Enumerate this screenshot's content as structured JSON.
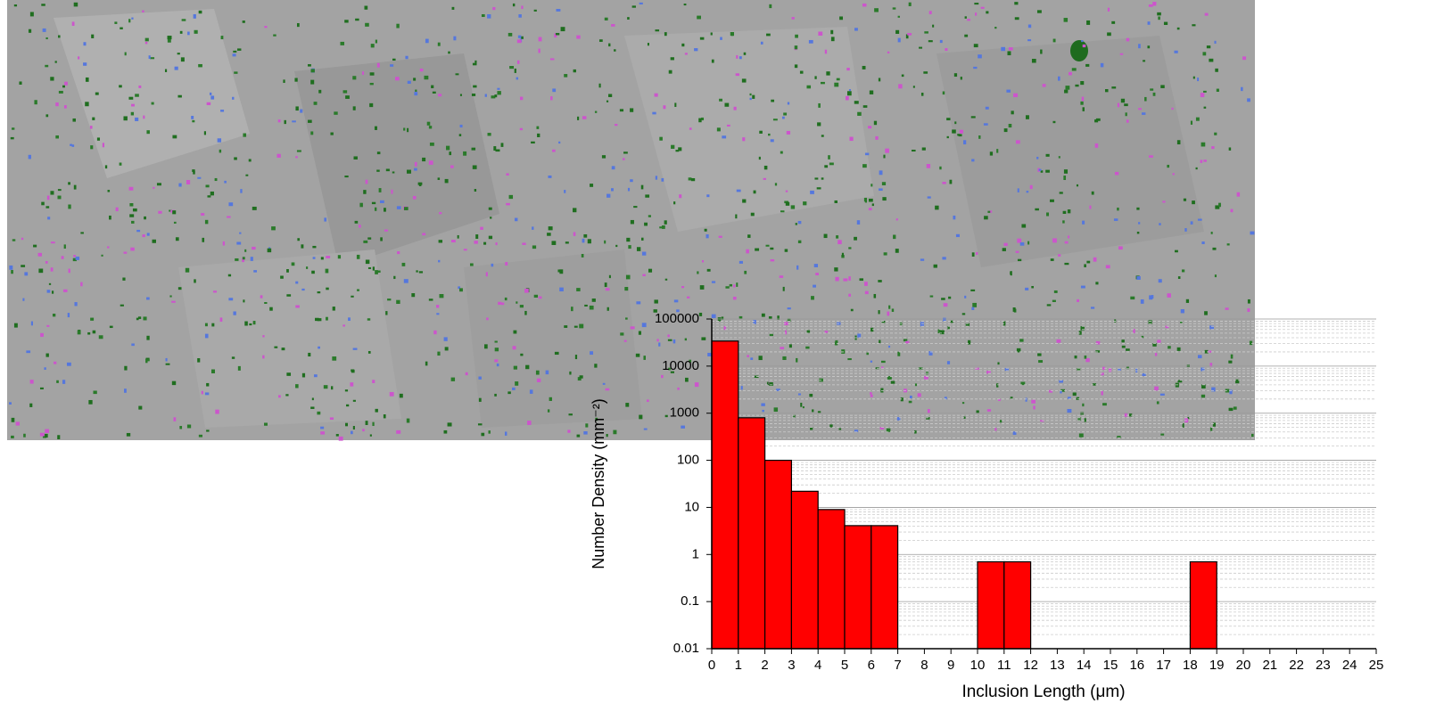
{
  "chart_data": {
    "type": "histogram",
    "x_label": "Inclusion Length (μm)",
    "y_label": "Number Density (mm⁻²)",
    "bins": [
      0,
      1,
      2,
      3,
      4,
      5,
      6,
      7,
      8,
      9,
      10,
      11,
      12,
      13,
      14,
      15,
      16,
      17,
      18,
      19,
      20,
      21,
      22,
      23,
      24,
      25
    ],
    "values": [
      34000,
      800,
      100,
      22,
      9,
      4.1,
      4.1,
      null,
      null,
      null,
      0.7,
      0.7,
      null,
      null,
      null,
      null,
      null,
      null,
      0.7,
      null,
      null,
      null,
      null,
      null,
      null
    ],
    "color": "#ff0000",
    "xlim": [
      0,
      25
    ],
    "xticks": [
      0,
      1,
      2,
      3,
      4,
      5,
      6,
      7,
      8,
      9,
      10,
      11,
      12,
      13,
      14,
      15,
      16,
      17,
      18,
      19,
      20,
      21,
      22,
      23,
      24,
      25
    ],
    "ylim": [
      0.01,
      100000
    ],
    "yticks": [
      0.01,
      0.1,
      1,
      10,
      100,
      1000,
      10000,
      100000
    ],
    "y_log": true,
    "grid": true,
    "minor_grid": true
  }
}
